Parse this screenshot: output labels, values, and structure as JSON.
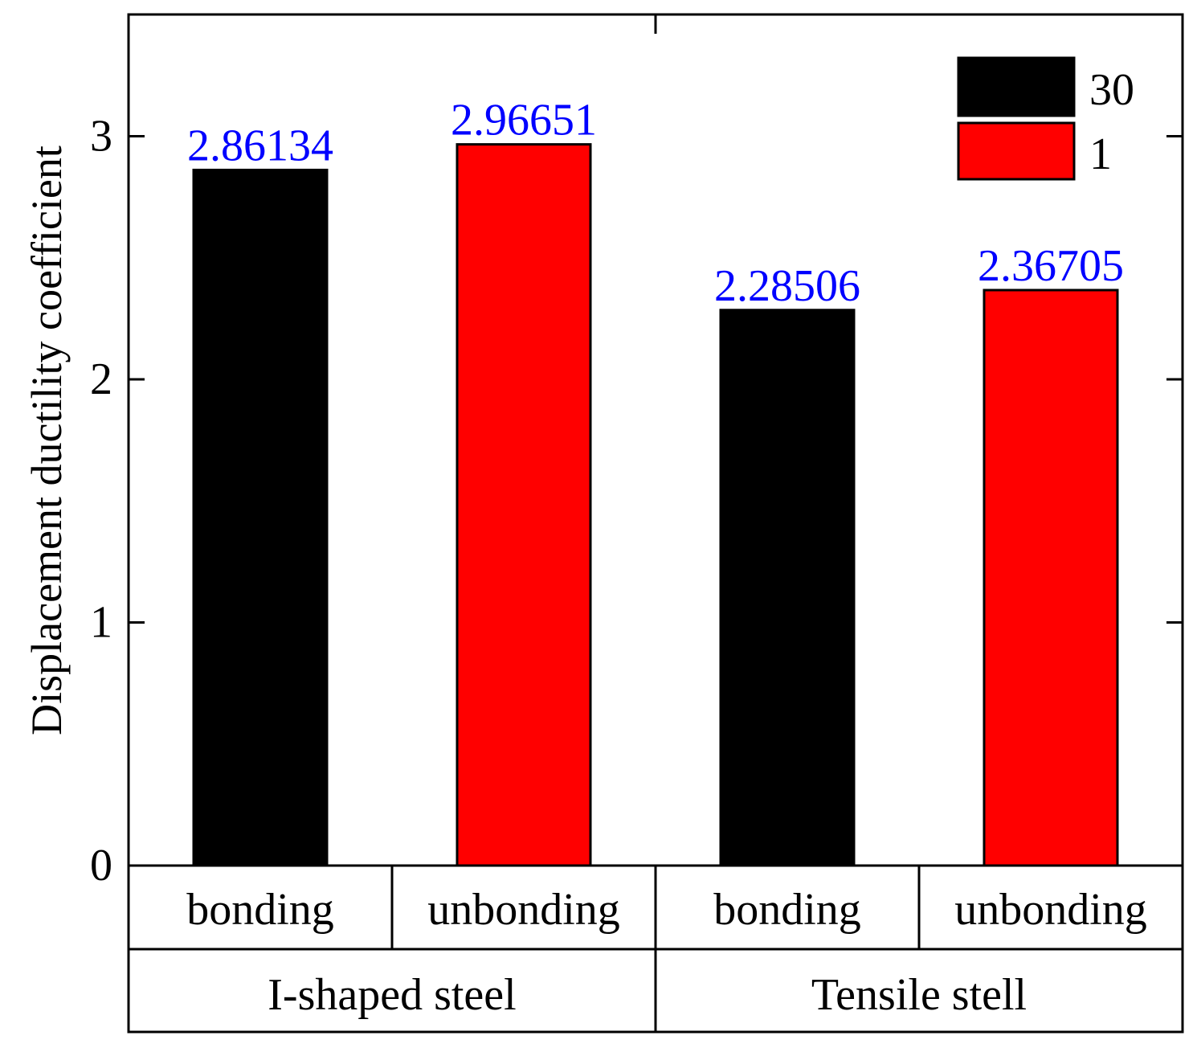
{
  "chart_data": {
    "type": "bar",
    "title": "",
    "ylabel": "Displacement ductility coefficient",
    "xlabel": "",
    "ylim": [
      0,
      3.5
    ],
    "yticks": [
      0,
      1,
      2,
      3
    ],
    "categories": [
      "bonding",
      "unbonding",
      "bonding",
      "unbonding"
    ],
    "groups": [
      {
        "label": "I-shaped steel",
        "categories": [
          "bonding",
          "unbonding"
        ]
      },
      {
        "label": "Tensile stell",
        "categories": [
          "bonding",
          "unbonding"
        ]
      }
    ],
    "bars": [
      {
        "group": "I-shaped steel",
        "category": "bonding",
        "series": "30",
        "value": 2.86134,
        "label": "2.86134"
      },
      {
        "group": "I-shaped steel",
        "category": "unbonding",
        "series": "1",
        "value": 2.96651,
        "label": "2.96651"
      },
      {
        "group": "Tensile stell",
        "category": "bonding",
        "series": "30",
        "value": 2.28506,
        "label": "2.28506"
      },
      {
        "group": "Tensile stell",
        "category": "unbonding",
        "series": "1",
        "value": 2.36705,
        "label": "2.36705"
      }
    ],
    "legend": [
      {
        "name": "30",
        "color": "#000000"
      },
      {
        "name": "1",
        "color": "#ff0000"
      }
    ],
    "legend_position": "top-right",
    "label_color": "#0000ff",
    "grid": false
  }
}
